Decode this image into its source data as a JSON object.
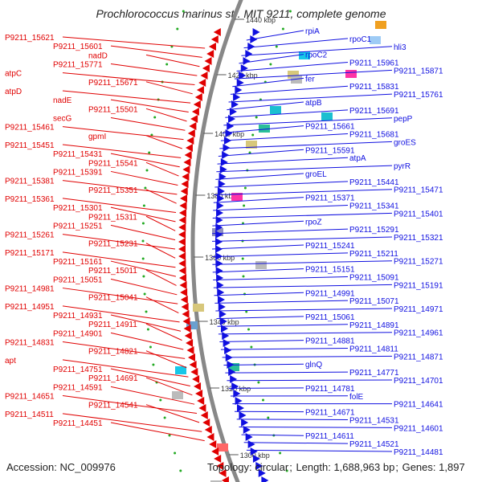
{
  "title": "Prochlorococcus marinus str. MIT 9211, complete genome",
  "footer": {
    "accession_label": "Accession:",
    "accession": "NC_009976",
    "topology_label": "Topology:",
    "topology": "circular",
    "length_label": "Length:",
    "length": "1,688,963 bp",
    "genes_label": "Genes:",
    "genes": "1,897"
  },
  "colors": {
    "reverse_strand": "#e00000",
    "forward_strand": "#1010e0",
    "backbone": "#888888",
    "tick": "#22aa22"
  },
  "tick_labels": [
    "1440 kbp",
    "1420 kbp",
    "1400 kbp",
    "1380 kbp",
    "1360 kbp",
    "1340 kbp",
    "1320 kbp",
    "1300 kbp"
  ],
  "left_labels": [
    "P9211_15621",
    "P9211_15601",
    "nadD",
    "P9211_15771",
    "atpC",
    "P9211_15671",
    "atpD",
    "nadE",
    "P9211_15501",
    "secG",
    "P9211_15461",
    "gpmI",
    "P9211_15451",
    "P9211_15431",
    "P9211_15541",
    "P9211_15391",
    "P9211_15381",
    "P9211_15351",
    "P9211_15361",
    "P9211_15301",
    "P9211_15311",
    "P9211_15251",
    "P9211_15261",
    "P9211_15231",
    "P9211_15171",
    "P9211_15161",
    "P9211_15011",
    "P9211_15051",
    "P9211_14981",
    "P9211_15041",
    "P9211_14951",
    "P9211_14931",
    "P9211_14911",
    "P9211_14901",
    "P9211_14831",
    "P9211_14821",
    "apt",
    "P9211_14751",
    "P9211_14691",
    "P9211_14591",
    "P9211_14651",
    "P9211_14541",
    "P9211_14511",
    "P9211_14451"
  ],
  "right_labels": [
    "rpiA",
    "rpoC1",
    "hli3",
    "rpoC2",
    "P9211_15961",
    "P9211_15871",
    "fer",
    "P9211_15831",
    "P9211_15761",
    "atpB",
    "P9211_15691",
    "pepP",
    "P9211_15661",
    "P9211_15681",
    "groES",
    "P9211_15591",
    "atpA",
    "pyrR",
    "groEL",
    "P9211_15441",
    "P9211_15471",
    "P9211_15371",
    "P9211_15341",
    "P9211_15401",
    "rpoZ",
    "P9211_15291",
    "P9211_15321",
    "P9211_15241",
    "P9211_15211",
    "P9211_15271",
    "P9211_15151",
    "P9211_15091",
    "P9211_15191",
    "P9211_14991",
    "P9211_15071",
    "P9211_14971",
    "P9211_15061",
    "P9211_14891",
    "P9211_14961",
    "P9211_14881",
    "P9211_14811",
    "P9211_14871",
    "glnQ",
    "P9211_14771",
    "P9211_14701",
    "P9211_14781",
    "folE",
    "P9211_14641",
    "P9211_14671",
    "P9211_14531",
    "P9211_14601",
    "P9211_14611",
    "P9211_14521",
    "P9211_14481"
  ]
}
